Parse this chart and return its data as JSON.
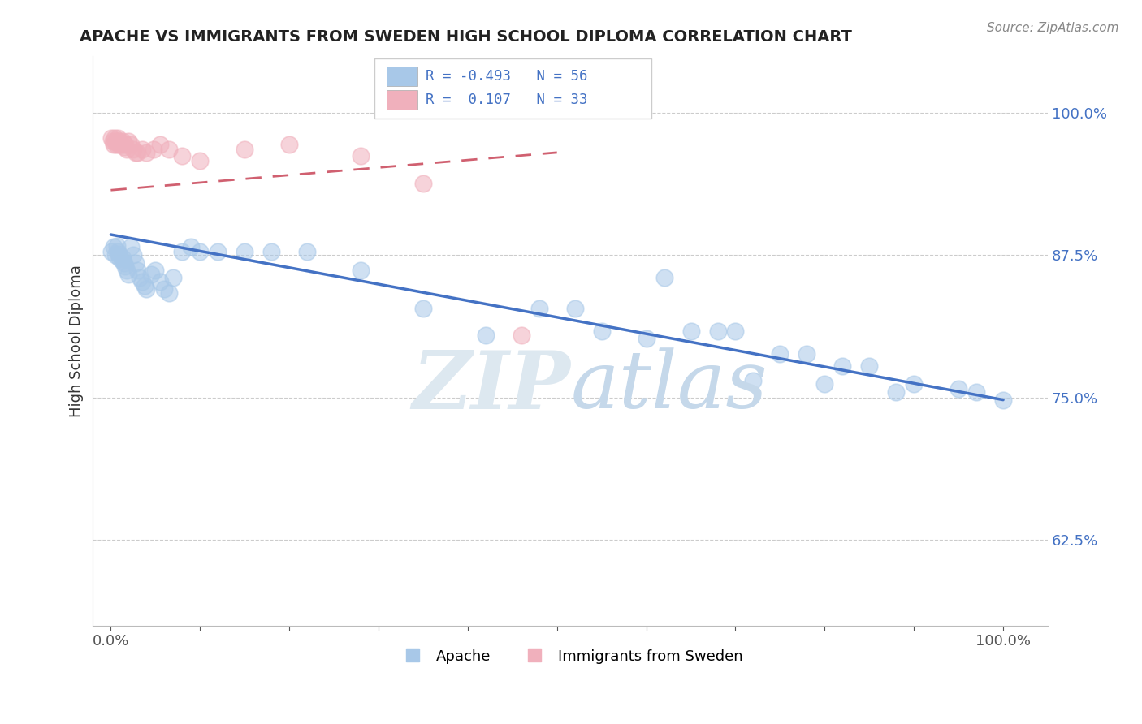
{
  "title": "APACHE VS IMMIGRANTS FROM SWEDEN HIGH SCHOOL DIPLOMA CORRELATION CHART",
  "source": "Source: ZipAtlas.com",
  "ylabel": "High School Diploma",
  "legend_blue_label": "Apache",
  "legend_pink_label": "Immigrants from Sweden",
  "R_blue": -0.493,
  "N_blue": 56,
  "R_pink": 0.107,
  "N_pink": 33,
  "blue_color": "#a8c8e8",
  "pink_color": "#f0b0bc",
  "blue_line_color": "#4472C4",
  "pink_line_color": "#d06070",
  "background_color": "#ffffff",
  "apache_x": [
    0.001,
    0.003,
    0.005,
    0.007,
    0.008,
    0.009,
    0.01,
    0.012,
    0.013,
    0.015,
    0.016,
    0.018,
    0.02,
    0.022,
    0.025,
    0.028,
    0.03,
    0.032,
    0.035,
    0.038,
    0.04,
    0.045,
    0.05,
    0.055,
    0.06,
    0.065,
    0.07,
    0.08,
    0.09,
    0.1,
    0.12,
    0.15,
    0.18,
    0.22,
    0.28,
    0.35,
    0.42,
    0.48,
    0.52,
    0.55,
    0.6,
    0.62,
    0.65,
    0.68,
    0.7,
    0.72,
    0.75,
    0.78,
    0.8,
    0.82,
    0.85,
    0.88,
    0.9,
    0.95,
    0.97,
    1.0
  ],
  "apache_y": [
    0.878,
    0.882,
    0.875,
    0.883,
    0.878,
    0.876,
    0.872,
    0.87,
    0.872,
    0.868,
    0.865,
    0.862,
    0.858,
    0.882,
    0.875,
    0.868,
    0.862,
    0.855,
    0.852,
    0.848,
    0.845,
    0.858,
    0.862,
    0.852,
    0.845,
    0.842,
    0.855,
    0.878,
    0.882,
    0.878,
    0.878,
    0.878,
    0.878,
    0.878,
    0.862,
    0.828,
    0.805,
    0.828,
    0.828,
    0.808,
    0.802,
    0.855,
    0.808,
    0.808,
    0.808,
    0.765,
    0.788,
    0.788,
    0.762,
    0.778,
    0.778,
    0.755,
    0.762,
    0.758,
    0.755,
    0.748
  ],
  "sweden_x": [
    0.001,
    0.002,
    0.003,
    0.004,
    0.005,
    0.006,
    0.007,
    0.008,
    0.009,
    0.01,
    0.011,
    0.012,
    0.013,
    0.015,
    0.016,
    0.018,
    0.02,
    0.022,
    0.025,
    0.028,
    0.03,
    0.035,
    0.04,
    0.048,
    0.055,
    0.065,
    0.08,
    0.1,
    0.15,
    0.2,
    0.28,
    0.35,
    0.46
  ],
  "sweden_y": [
    0.978,
    0.975,
    0.972,
    0.978,
    0.975,
    0.972,
    0.975,
    0.978,
    0.972,
    0.975,
    0.972,
    0.972,
    0.975,
    0.97,
    0.972,
    0.968,
    0.975,
    0.972,
    0.968,
    0.965,
    0.965,
    0.968,
    0.965,
    0.968,
    0.972,
    0.968,
    0.962,
    0.958,
    0.968,
    0.972,
    0.962,
    0.938,
    0.805
  ],
  "xlim": [
    -0.02,
    1.05
  ],
  "ylim": [
    0.55,
    1.05
  ],
  "ytick_vals": [
    0.625,
    0.75,
    0.875,
    1.0
  ],
  "ytick_labels": [
    "62.5%",
    "75.0%",
    "87.5%",
    "100.0%"
  ],
  "xtick_vals": [
    0.0,
    0.1,
    0.2,
    0.3,
    0.4,
    0.5,
    0.6,
    0.7,
    0.8,
    0.9,
    1.0
  ],
  "xtick_labels": [
    "0.0%",
    "",
    "",
    "",
    "",
    "",
    "",
    "",
    "",
    "",
    "100.0%"
  ]
}
